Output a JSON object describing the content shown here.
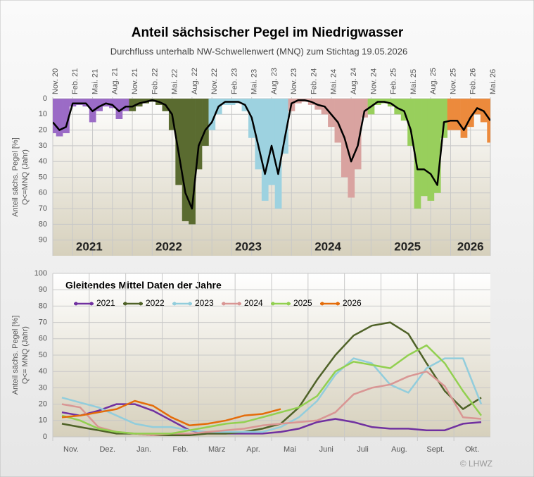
{
  "chart_data": [
    {
      "type": "bar",
      "title": "Anteil sächsischer Pegel im Niedrigwasser",
      "subtitle": "Durchfluss unterhalb NW-Schwellenwert (MNQ) zum Stichtag 19.05.2026",
      "ylabel": [
        "Anteil sächs. Pegel [%]",
        "Q<=MNQ (Jahr)"
      ],
      "y_inverted": true,
      "ylim": [
        0,
        100
      ],
      "yticks": [
        0,
        10,
        20,
        30,
        40,
        50,
        60,
        70,
        80,
        90
      ],
      "grid": true,
      "categories": [
        "Nov. 20",
        null,
        null,
        "Feb. 21",
        null,
        null,
        "Mai. 21",
        null,
        null,
        "Aug. 21",
        null,
        null,
        "Nov. 21",
        null,
        null,
        "Feb. 22",
        null,
        null,
        "Mai. 22",
        null,
        null,
        "Aug. 22",
        null,
        null,
        "Nov. 22",
        null,
        null,
        "Feb. 23",
        null,
        null,
        "Mai. 23",
        null,
        null,
        "Aug. 23",
        null,
        null,
        "Nov. 23",
        null,
        null,
        "Feb. 24",
        null,
        null,
        "Mai. 24",
        null,
        null,
        "Aug. 24",
        null,
        null,
        "Nov. 24",
        null,
        null,
        "Feb. 25",
        null,
        null,
        "Mai. 25",
        null,
        null,
        "Aug. 25",
        null,
        null,
        "Nov. 25",
        null,
        null,
        "Feb. 26",
        null,
        null,
        "Mai. 26"
      ],
      "series": [
        {
          "name": "2021",
          "kind": "bar",
          "color": "#9b6bc6",
          "values": [
            22,
            24,
            22,
            5,
            4,
            5,
            15,
            8,
            5,
            6,
            13,
            8,
            null,
            null,
            null,
            null,
            null,
            null,
            null,
            null,
            null,
            null,
            null,
            null,
            null,
            null,
            null,
            null,
            null,
            null,
            null,
            null,
            null,
            null,
            null,
            null,
            null,
            null,
            null,
            null,
            null,
            null,
            null,
            null,
            null,
            null,
            null,
            null,
            null,
            null,
            null,
            null,
            null,
            null,
            null,
            null,
            null,
            null,
            null,
            null,
            null,
            null,
            null,
            null,
            null,
            null,
            null
          ]
        },
        {
          "name": "2022",
          "kind": "bar",
          "color": "#5a6b30",
          "values": [
            null,
            null,
            null,
            null,
            null,
            null,
            null,
            null,
            null,
            null,
            null,
            null,
            8,
            5,
            3,
            2,
            4,
            8,
            20,
            55,
            78,
            80,
            45,
            30,
            null,
            null,
            null,
            null,
            null,
            null,
            null,
            null,
            null,
            null,
            null,
            null,
            null,
            null,
            null,
            null,
            null,
            null,
            null,
            null,
            null,
            null,
            null,
            null,
            null,
            null,
            null,
            null,
            null,
            null,
            null,
            null,
            null,
            null,
            null,
            null,
            null,
            null,
            null,
            null,
            null,
            null,
            null
          ]
        },
        {
          "name": "2023",
          "kind": "bar",
          "color": "#9dd2e0",
          "values": [
            null,
            null,
            null,
            null,
            null,
            null,
            null,
            null,
            null,
            null,
            null,
            null,
            null,
            null,
            null,
            null,
            null,
            null,
            null,
            null,
            null,
            null,
            null,
            null,
            20,
            10,
            4,
            4,
            3,
            8,
            25,
            45,
            65,
            55,
            70,
            35,
            null,
            null,
            null,
            null,
            null,
            null,
            null,
            null,
            null,
            null,
            null,
            null,
            null,
            null,
            null,
            null,
            null,
            null,
            null,
            null,
            null,
            null,
            null,
            null,
            null,
            null,
            null,
            null,
            null,
            null,
            null
          ]
        },
        {
          "name": "2024",
          "kind": "bar",
          "color": "#d9a3a0",
          "values": [
            null,
            null,
            null,
            null,
            null,
            null,
            null,
            null,
            null,
            null,
            null,
            null,
            null,
            null,
            null,
            null,
            null,
            null,
            null,
            null,
            null,
            null,
            null,
            null,
            null,
            null,
            null,
            null,
            null,
            null,
            null,
            null,
            null,
            null,
            null,
            null,
            8,
            3,
            2,
            4,
            7,
            10,
            18,
            28,
            50,
            63,
            45,
            12,
            null,
            null,
            null,
            null,
            null,
            null,
            null,
            null,
            null,
            null,
            null,
            null,
            null,
            null,
            null,
            null,
            null,
            null,
            null
          ]
        },
        {
          "name": "2025",
          "kind": "bar",
          "color": "#98cf5c",
          "values": [
            null,
            null,
            null,
            null,
            null,
            null,
            null,
            null,
            null,
            null,
            null,
            null,
            null,
            null,
            null,
            null,
            null,
            null,
            null,
            null,
            null,
            null,
            null,
            null,
            null,
            null,
            null,
            null,
            null,
            null,
            null,
            null,
            null,
            null,
            null,
            null,
            null,
            null,
            null,
            null,
            null,
            null,
            null,
            null,
            null,
            null,
            null,
            null,
            10,
            4,
            3,
            5,
            10,
            14,
            30,
            70,
            62,
            65,
            60,
            25,
            null,
            null,
            null,
            null,
            null,
            null,
            null
          ]
        },
        {
          "name": "2026",
          "kind": "bar",
          "color": "#ec8a3c",
          "values": [
            null,
            null,
            null,
            null,
            null,
            null,
            null,
            null,
            null,
            null,
            null,
            null,
            null,
            null,
            null,
            null,
            null,
            null,
            null,
            null,
            null,
            null,
            null,
            null,
            null,
            null,
            null,
            null,
            null,
            null,
            null,
            null,
            null,
            null,
            null,
            null,
            null,
            null,
            null,
            null,
            null,
            null,
            null,
            null,
            null,
            null,
            null,
            null,
            null,
            null,
            null,
            null,
            null,
            null,
            null,
            null,
            null,
            null,
            null,
            null,
            20,
            20,
            25,
            18,
            10,
            15,
            28
          ]
        },
        {
          "kind": "line",
          "color": "#000000",
          "values": [
            15,
            20,
            18,
            3,
            3,
            3,
            8,
            5,
            3,
            4,
            8,
            5,
            5,
            3,
            2,
            1,
            2,
            4,
            10,
            35,
            60,
            70,
            30,
            20,
            15,
            5,
            2,
            2,
            2,
            4,
            12,
            30,
            48,
            30,
            48,
            25,
            3,
            1,
            1,
            2,
            4,
            5,
            10,
            15,
            25,
            40,
            30,
            8,
            5,
            2,
            2,
            3,
            6,
            8,
            20,
            45,
            45,
            48,
            55,
            15,
            14,
            14,
            20,
            12,
            6,
            8,
            14
          ]
        }
      ]
    },
    {
      "type": "line",
      "title": "Gleitendes Mittel Daten der Jahre",
      "ylabel": [
        "Anteil sächs. Pegel [%]",
        "Q<= MNQ (Jahr)"
      ],
      "ylim": [
        0,
        100
      ],
      "yticks": [
        0,
        10,
        20,
        30,
        40,
        50,
        60,
        70,
        80,
        90,
        100
      ],
      "grid": true,
      "legend": "top-left",
      "categories": [
        "Nov.",
        null,
        "Dez.",
        null,
        "Jan.",
        null,
        "Feb.",
        null,
        "März",
        null,
        "Apr.",
        null,
        "Mai",
        null,
        "Juni",
        null,
        "Juli",
        null,
        "Aug.",
        null,
        "Sept.",
        null,
        "Okt.",
        null
      ],
      "series": [
        {
          "name": "2021",
          "color": "#7030a0",
          "values": [
            15,
            13,
            16,
            20,
            20,
            16,
            10,
            4,
            2,
            2,
            2,
            2,
            3,
            5,
            9,
            11,
            9,
            6,
            5,
            5,
            4,
            4,
            8,
            9
          ]
        },
        {
          "name": "2022",
          "color": "#4f6228",
          "values": [
            8,
            6,
            4,
            2,
            2,
            1,
            1,
            1,
            2,
            2,
            3,
            5,
            8,
            18,
            35,
            50,
            62,
            68,
            70,
            63,
            45,
            28,
            17,
            24
          ]
        },
        {
          "name": "2023",
          "color": "#92cddc",
          "values": [
            24,
            21,
            18,
            13,
            8,
            6,
            6,
            4,
            3,
            3,
            3,
            3,
            6,
            12,
            22,
            38,
            48,
            45,
            32,
            27,
            42,
            48,
            48,
            20
          ]
        },
        {
          "name": "2024",
          "color": "#d99694",
          "values": [
            20,
            18,
            6,
            3,
            2,
            1,
            2,
            2,
            3,
            4,
            5,
            7,
            8,
            9,
            10,
            15,
            26,
            30,
            32,
            37,
            40,
            31,
            12,
            11
          ]
        },
        {
          "name": "2025",
          "color": "#92d050",
          "values": [
            13,
            10,
            5,
            3,
            2,
            2,
            2,
            4,
            6,
            8,
            9,
            12,
            15,
            18,
            25,
            40,
            46,
            44,
            42,
            50,
            56,
            45,
            28,
            13
          ]
        },
        {
          "name": "2026",
          "color": "#e46c0a",
          "values": [
            12,
            13,
            15,
            17,
            22,
            19,
            12,
            7,
            8,
            10,
            13,
            14,
            17,
            null,
            null,
            null,
            null,
            null,
            null,
            null,
            null,
            null,
            null,
            null
          ]
        }
      ]
    }
  ],
  "credit": "© LHWZ"
}
